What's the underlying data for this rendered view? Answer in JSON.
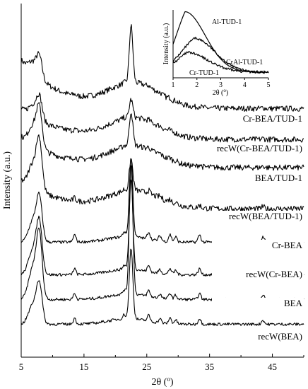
{
  "chart_data": {
    "type": "line",
    "xlabel": "2θ (",
    "xlabel_unit": "o",
    "xlabel_close": ")",
    "ylabel": "Intensity (a.u.)",
    "xlim": [
      5,
      50
    ],
    "xticks": [
      "5",
      "15",
      "25",
      "35",
      "45"
    ],
    "series": [
      {
        "name": "Cr-BEA/TUD-1",
        "type": "mixed",
        "low_angle_peak": 0.55,
        "bump_26": 0.0,
        "baseline": 0.18,
        "decay": 0.95,
        "trough": 0.42,
        "peak_22": 1.0,
        "minor_peaks": 0.02,
        "noise": 0.05
      },
      {
        "name": "recW(Cr-BEA/TUD-1)",
        "type": "mixed",
        "low_angle_peak": 0.6,
        "bump_26": 0.0,
        "baseline": 0.16,
        "decay": 0.6,
        "trough": 0.36,
        "peak_22": 0.32,
        "minor_peaks": 0.02,
        "noise": 0.05
      },
      {
        "name": "BEA/TUD-1",
        "type": "mixed",
        "low_angle_peak": 1.0,
        "bump_26": 0.0,
        "baseline": 0.2,
        "decay": 0.6,
        "trough": 0.36,
        "peak_22": 0.6,
        "minor_peaks": 0.03,
        "noise": 0.05
      },
      {
        "name": "recW(BEA/TUD-1)",
        "type": "mixed",
        "low_angle_peak": 1.25,
        "bump_26": 0.0,
        "baseline": 0.16,
        "decay": 0.55,
        "trough": 0.3,
        "peak_22": 0.55,
        "minor_peaks": 0.04,
        "noise": 0.05
      },
      {
        "name": "Cr-BEA",
        "type": "zeolite",
        "low_angle_peak": 1.1,
        "bump_26": 0.0,
        "baseline": 0.12,
        "decay": 0.0,
        "trough": 0.1,
        "peak_22": 1.4,
        "minor_peaks": 0.1,
        "noise": 0.025
      },
      {
        "name": "recW(Cr-BEA)",
        "type": "zeolite",
        "low_angle_peak": 1.3,
        "bump_26": 0.0,
        "baseline": 0.12,
        "decay": 0.0,
        "trough": 0.1,
        "peak_22": 1.6,
        "minor_peaks": 0.08,
        "noise": 0.025
      },
      {
        "name": "BEA",
        "type": "zeolite",
        "low_angle_peak": 1.6,
        "bump_26": 0.0,
        "baseline": 0.12,
        "decay": 0.0,
        "trough": 0.1,
        "peak_22": 2.3,
        "minor_peaks": 0.08,
        "noise": 0.025
      },
      {
        "name": "recW(BEA)",
        "type": "zeolite",
        "low_angle_peak": 1.0,
        "bump_26": 0.0,
        "baseline": 0.12,
        "decay": 0.0,
        "trough": 0.1,
        "peak_22": 1.25,
        "minor_peaks": 0.08,
        "noise": 0.025
      }
    ],
    "inset": {
      "ylabel": "Intensity (a.u.)",
      "xlabel": "2θ (",
      "xlabel_unit": "o",
      "xlabel_close": ")",
      "xlim": [
        1,
        5
      ],
      "xticks": [
        "1",
        "2",
        "3",
        "4",
        "5"
      ],
      "series": [
        {
          "name": "Al-TUD-1",
          "peak_x": 1.5,
          "peak_y": 1.0
        },
        {
          "name": "CrAl-TUD-1",
          "peak_x": 1.9,
          "peak_y": 0.55
        },
        {
          "name": "Cr-TUD-1",
          "peak_x": 1.6,
          "peak_y": 0.3
        }
      ]
    }
  }
}
